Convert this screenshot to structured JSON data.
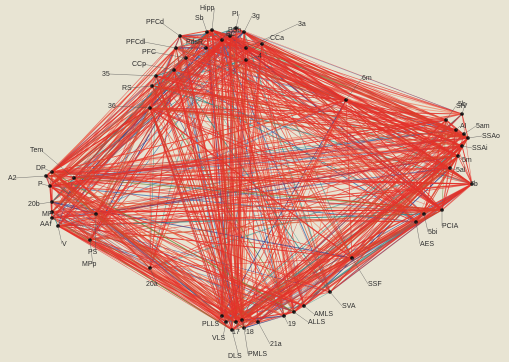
{
  "diagram": {
    "type": "network-connectivity",
    "edge_colors": [
      "#e4322b",
      "#ef6a4b",
      "#f29073",
      "#2f8f8c",
      "#3a6fb0",
      "#2e3f8f",
      "#6c8c3a",
      "#d14c2a"
    ],
    "background_color": "#e8e4d3",
    "node_color": "#111111",
    "nodes": [
      {
        "id": "PFCd",
        "label": "PFCd"
      },
      {
        "id": "Sb",
        "label": "Sb"
      },
      {
        "id": "Hipp",
        "label": "Hipp"
      },
      {
        "id": "PI",
        "label": "PI"
      },
      {
        "id": "3g",
        "label": "3g"
      },
      {
        "id": "CCa",
        "label": "CCa"
      },
      {
        "id": "3a",
        "label": "3a"
      },
      {
        "id": "PSb",
        "label": "PSb"
      },
      {
        "id": "PFCdl",
        "label": "PFCdl"
      },
      {
        "id": "PdsR",
        "label": "PdsR"
      },
      {
        "id": "EC",
        "label": "EC"
      },
      {
        "id": "PFC",
        "label": "PFC"
      },
      {
        "id": "4",
        "label": "4"
      },
      {
        "id": "CCp",
        "label": "CCp"
      },
      {
        "id": "35",
        "label": "35"
      },
      {
        "id": "RS",
        "label": "RS"
      },
      {
        "id": "36",
        "label": "36"
      },
      {
        "id": "6m",
        "label": "6m"
      },
      {
        "id": "5b",
        "label": "5b"
      },
      {
        "id": "SIV",
        "label": "SIV"
      },
      {
        "id": "AI",
        "label": "AI"
      },
      {
        "id": "5am",
        "label": "5am"
      },
      {
        "id": "SSAo",
        "label": "SSAo"
      },
      {
        "id": "SSAi",
        "label": "SSAi"
      },
      {
        "id": "5m",
        "label": "5m"
      },
      {
        "id": "5al",
        "label": "5al"
      },
      {
        "id": "7b",
        "label": "7b"
      },
      {
        "id": "PCIA",
        "label": "PCIA"
      },
      {
        "id": "5bi",
        "label": "5bi"
      },
      {
        "id": "AES",
        "label": "AES"
      },
      {
        "id": "SSF",
        "label": "SSF"
      },
      {
        "id": "SVA",
        "label": "SVA"
      },
      {
        "id": "AMLS",
        "label": "AMLS"
      },
      {
        "id": "ALLS",
        "label": "ALLS"
      },
      {
        "id": "19",
        "label": "19"
      },
      {
        "id": "21a",
        "label": "21a"
      },
      {
        "id": "18",
        "label": "18"
      },
      {
        "id": "PMLS",
        "label": "PMLS"
      },
      {
        "id": "DLS",
        "label": "DLS"
      },
      {
        "id": "17",
        "label": "17"
      },
      {
        "id": "VLS",
        "label": "VLS"
      },
      {
        "id": "PLLS",
        "label": "PLLS"
      },
      {
        "id": "20a",
        "label": "20a"
      },
      {
        "id": "MPp",
        "label": "MPp"
      },
      {
        "id": "PS",
        "label": "PS"
      },
      {
        "id": "V",
        "label": "V"
      },
      {
        "id": "AAf",
        "label": "AAf"
      },
      {
        "id": "MP",
        "label": "MP"
      },
      {
        "id": "20b",
        "label": "20b"
      },
      {
        "id": "P",
        "label": "P"
      },
      {
        "id": "A2",
        "label": "A2"
      },
      {
        "id": "DP",
        "label": "DP"
      },
      {
        "id": "Tem",
        "label": "Tem"
      }
    ]
  }
}
